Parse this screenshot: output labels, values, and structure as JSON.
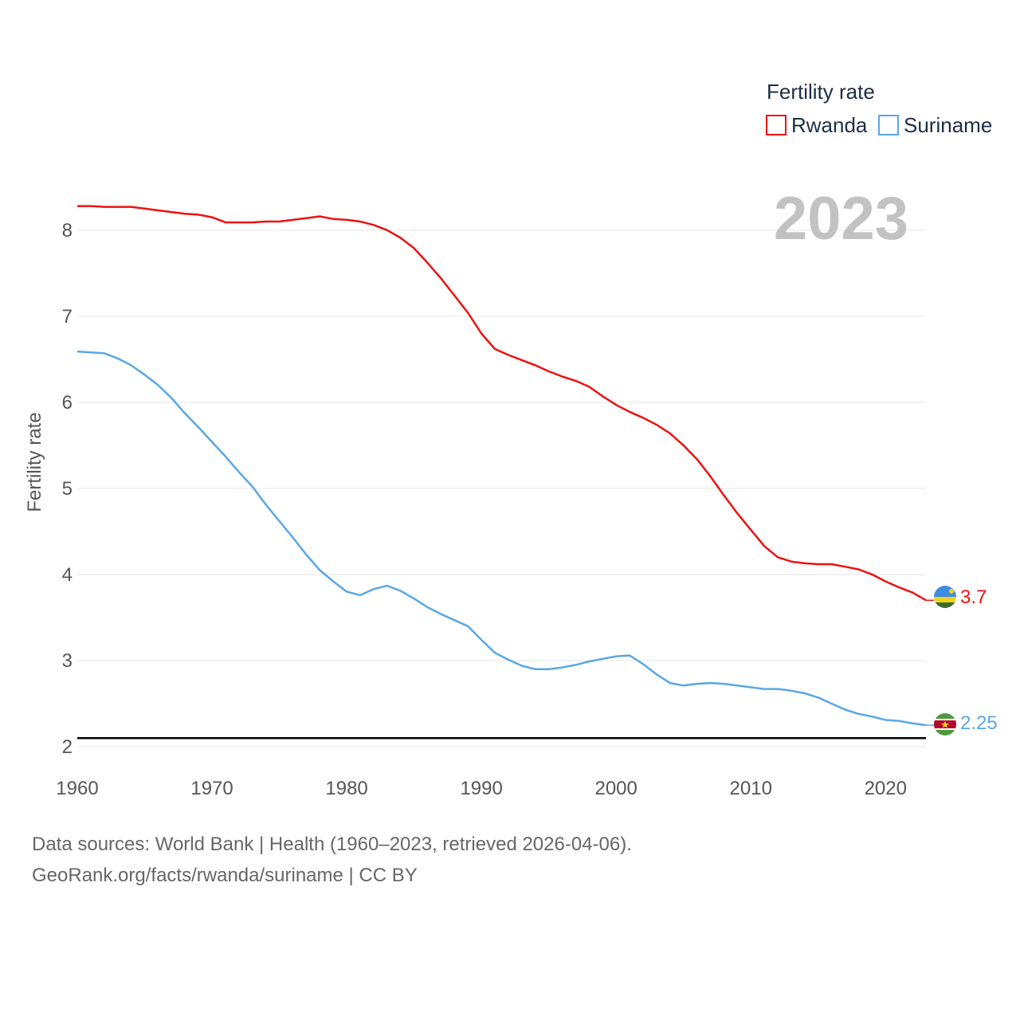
{
  "chart_data": {
    "type": "line",
    "year_label": "2023",
    "ylabel": "Fertility rate",
    "xlabel": "",
    "legend_title": "Fertility rate",
    "legend_position": "top-right",
    "xlim": [
      1960,
      2023
    ],
    "ylim": [
      2,
      8.6
    ],
    "x_ticks": [
      1960,
      1970,
      1980,
      1990,
      2000,
      2010,
      2020
    ],
    "y_ticks": [
      2,
      3,
      4,
      5,
      6,
      7,
      8
    ],
    "reference_line": 2.1,
    "x": [
      1960,
      1961,
      1962,
      1963,
      1964,
      1965,
      1966,
      1967,
      1968,
      1969,
      1970,
      1971,
      1972,
      1973,
      1974,
      1975,
      1976,
      1977,
      1978,
      1979,
      1980,
      1981,
      1982,
      1983,
      1984,
      1985,
      1986,
      1987,
      1988,
      1989,
      1990,
      1991,
      1992,
      1993,
      1994,
      1995,
      1996,
      1997,
      1998,
      1999,
      2000,
      2001,
      2002,
      2003,
      2004,
      2005,
      2006,
      2007,
      2008,
      2009,
      2010,
      2011,
      2012,
      2013,
      2014,
      2015,
      2016,
      2017,
      2018,
      2019,
      2020,
      2021,
      2022,
      2023
    ],
    "series": [
      {
        "name": "Rwanda",
        "color": "#ee1111",
        "end_label": "3.7",
        "values": [
          8.28,
          8.28,
          8.27,
          8.27,
          8.27,
          8.25,
          8.23,
          8.21,
          8.19,
          8.18,
          8.15,
          8.09,
          8.09,
          8.09,
          8.1,
          8.1,
          8.12,
          8.14,
          8.16,
          8.13,
          8.12,
          8.1,
          8.06,
          8.0,
          7.91,
          7.79,
          7.62,
          7.44,
          7.24,
          7.04,
          6.8,
          6.62,
          6.55,
          6.49,
          6.43,
          6.36,
          6.3,
          6.25,
          6.18,
          6.07,
          5.97,
          5.89,
          5.82,
          5.74,
          5.64,
          5.5,
          5.34,
          5.14,
          4.92,
          4.71,
          4.52,
          4.33,
          4.2,
          4.15,
          4.13,
          4.12,
          4.12,
          4.09,
          4.06,
          4.0,
          3.92,
          3.85,
          3.79,
          3.7
        ]
      },
      {
        "name": "Suriname",
        "color": "#5aa7e6",
        "end_label": "2.25",
        "values": [
          6.59,
          6.58,
          6.57,
          6.51,
          6.43,
          6.32,
          6.2,
          6.05,
          5.87,
          5.71,
          5.54,
          5.37,
          5.19,
          5.02,
          4.81,
          4.62,
          4.43,
          4.23,
          4.05,
          3.92,
          3.8,
          3.76,
          3.83,
          3.87,
          3.81,
          3.72,
          3.62,
          3.54,
          3.47,
          3.4,
          3.24,
          3.09,
          3.01,
          2.94,
          2.9,
          2.9,
          2.92,
          2.95,
          2.99,
          3.02,
          3.05,
          3.06,
          2.96,
          2.84,
          2.74,
          2.71,
          2.73,
          2.74,
          2.73,
          2.71,
          2.69,
          2.67,
          2.67,
          2.65,
          2.62,
          2.57,
          2.5,
          2.43,
          2.38,
          2.35,
          2.31,
          2.3,
          2.27,
          2.25
        ]
      }
    ]
  },
  "footer": {
    "source_line1": "Data sources: World Bank | Health (1960–2023, retrieved 2026-04-06).",
    "source_line2": "GeoRank.org/facts/rwanda/suriname | CC BY"
  },
  "colors": {
    "grid": "#e6e6e6",
    "reference": "#000000",
    "rwanda_flag_blue": "#3d8ce0",
    "rwanda_flag_yellow": "#f2d21b",
    "rwanda_flag_green": "#3d6b2a",
    "suriname_flag_green": "#4d9a3e",
    "suriname_flag_red": "#b40a2d",
    "suriname_flag_star": "#f2d21b"
  }
}
